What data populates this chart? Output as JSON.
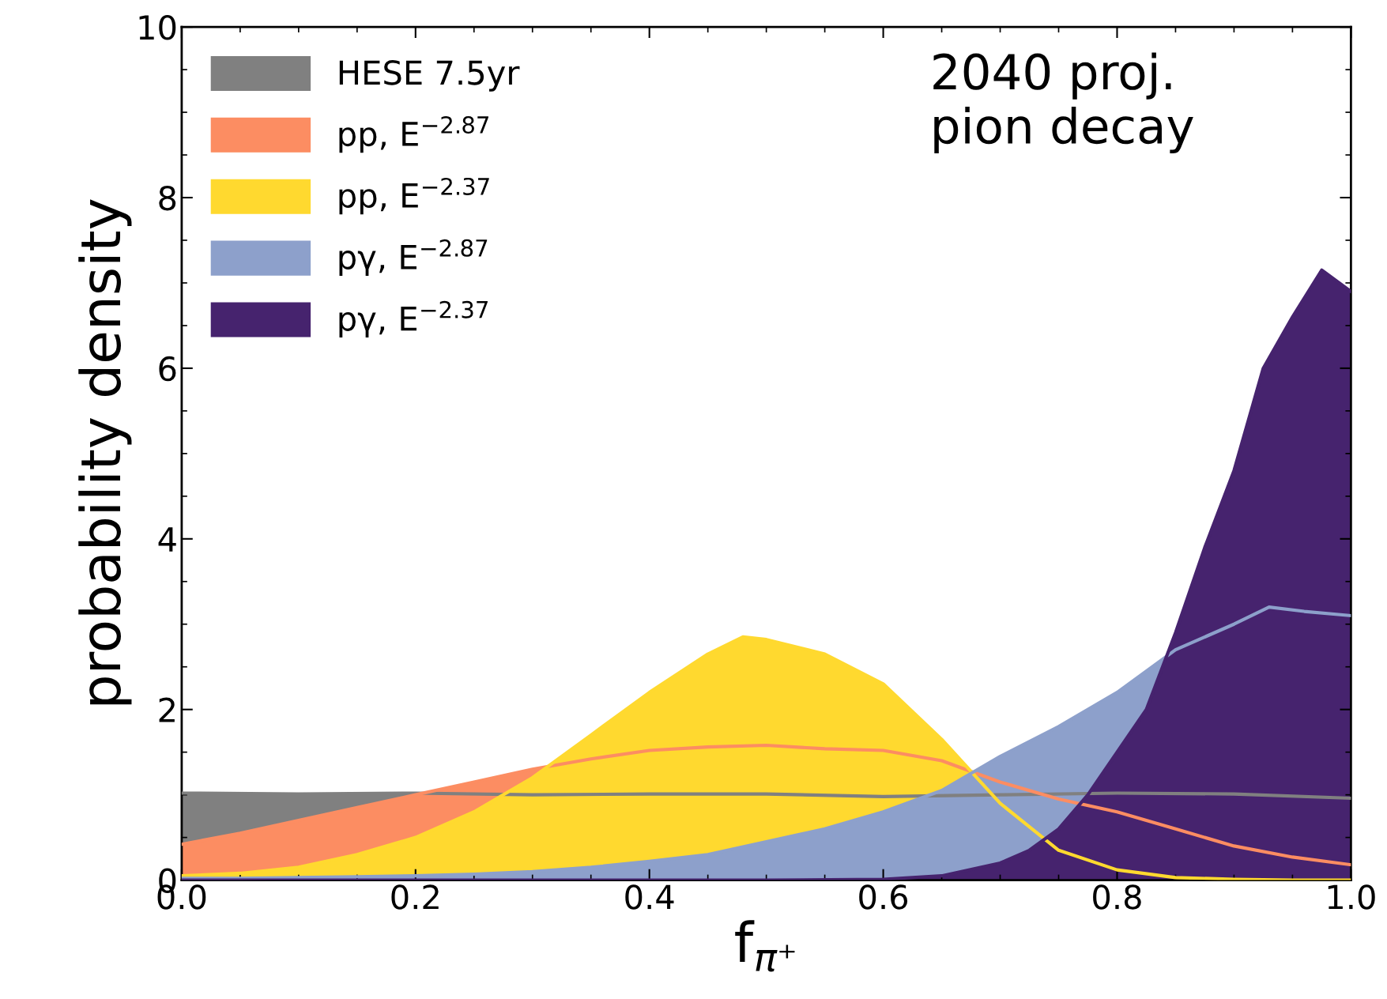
{
  "chart_data": {
    "type": "area",
    "xlabel": "f$_{π⁺}$",
    "ylabel": "probability density",
    "xlim": [
      0,
      1
    ],
    "ylim": [
      0,
      10
    ],
    "xticks": [
      {
        "value": 0,
        "label": "0.0"
      },
      0.2,
      0.4,
      0.6,
      0.8,
      {
        "value": 1,
        "label": "1.0"
      }
    ],
    "yticks": [
      0,
      2,
      4,
      6,
      8,
      10
    ],
    "grid": false,
    "legend": "top left",
    "annotations": [
      "2040 proj.\npion decay"
    ],
    "series": [
      {
        "name": "HESE 7.5yr",
        "color": "#808080",
        "x": [
          0,
          0.1,
          0.2,
          0.3,
          0.4,
          0.5,
          0.6,
          0.7,
          0.8,
          0.9,
          1.0
        ],
        "values": [
          1.02,
          1.01,
          1.02,
          1.0,
          1.01,
          1.01,
          0.98,
          1.0,
          1.02,
          1.01,
          0.96
        ]
      },
      {
        "name": "pp, E$^{−2.87}$",
        "color": "#fc8d62",
        "x": [
          0,
          0.05,
          0.1,
          0.15,
          0.2,
          0.25,
          0.3,
          0.35,
          0.4,
          0.45,
          0.5,
          0.55,
          0.6,
          0.65,
          0.7,
          0.75,
          0.8,
          0.85,
          0.9,
          0.95,
          1.0
        ],
        "values": [
          0.42,
          0.55,
          0.7,
          0.85,
          1.0,
          1.15,
          1.3,
          1.42,
          1.52,
          1.56,
          1.58,
          1.54,
          1.52,
          1.4,
          1.15,
          0.95,
          0.8,
          0.6,
          0.4,
          0.27,
          0.18
        ]
      },
      {
        "name": "pp, E$^{−2.37}$",
        "color": "#ffd92f",
        "x": [
          0,
          0.05,
          0.1,
          0.15,
          0.2,
          0.25,
          0.3,
          0.35,
          0.4,
          0.45,
          0.48,
          0.5,
          0.55,
          0.6,
          0.65,
          0.7,
          0.75,
          0.8,
          0.85,
          0.9,
          0.95,
          1.0
        ],
        "values": [
          0.05,
          0.08,
          0.15,
          0.3,
          0.5,
          0.8,
          1.2,
          1.7,
          2.2,
          2.65,
          2.85,
          2.82,
          2.65,
          2.3,
          1.65,
          0.9,
          0.35,
          0.12,
          0.03,
          0.01,
          0,
          0
        ]
      },
      {
        "name": "pγ, E$^{−2.87}$",
        "color": "#8da0cb",
        "x": [
          0,
          0.05,
          0.1,
          0.15,
          0.2,
          0.25,
          0.3,
          0.35,
          0.4,
          0.45,
          0.5,
          0.55,
          0.6,
          0.65,
          0.7,
          0.75,
          0.8,
          0.85,
          0.9,
          0.93,
          0.96,
          1.0
        ],
        "values": [
          0.02,
          0.02,
          0.03,
          0.04,
          0.05,
          0.07,
          0.1,
          0.15,
          0.22,
          0.3,
          0.45,
          0.6,
          0.8,
          1.05,
          1.45,
          1.8,
          2.2,
          2.7,
          3.0,
          3.2,
          3.15,
          3.1
        ]
      },
      {
        "name": "pγ, E$^{−2.37}$",
        "color": "#46236e",
        "x": [
          0,
          0.5,
          0.6,
          0.65,
          0.7,
          0.725,
          0.75,
          0.775,
          0.8,
          0.825,
          0.85,
          0.875,
          0.9,
          0.925,
          0.95,
          0.975,
          1.0
        ],
        "values": [
          0,
          0,
          0.01,
          0.05,
          0.2,
          0.35,
          0.6,
          1.0,
          1.5,
          2.0,
          2.9,
          3.9,
          4.8,
          6.0,
          6.6,
          7.15,
          6.9
        ]
      }
    ]
  }
}
